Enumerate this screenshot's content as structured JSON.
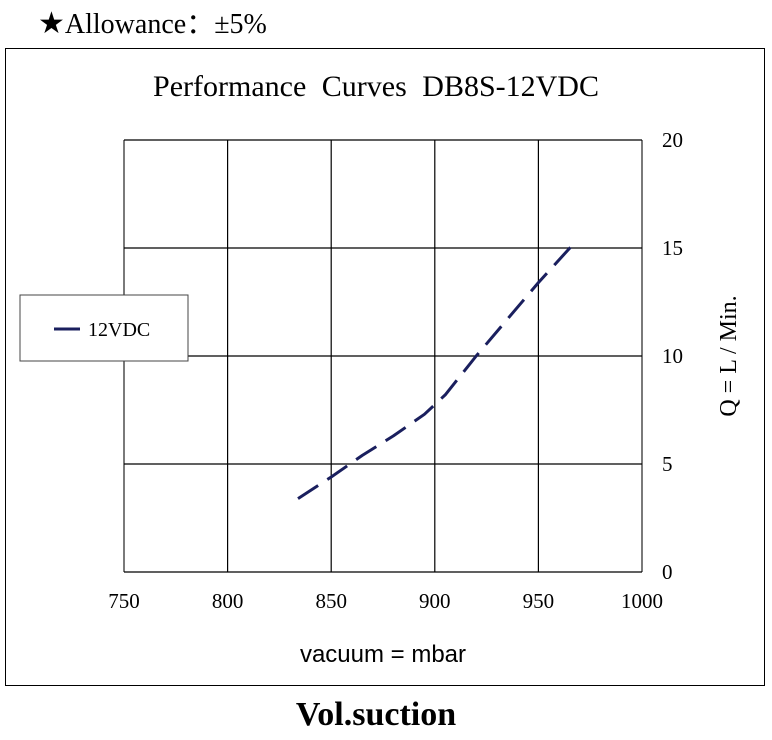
{
  "header": {
    "allowance_icon": "star-icon",
    "allowance_star": "★",
    "allowance_text": "Allowance：±5%"
  },
  "caption": "Vol.suction",
  "chart_data": {
    "type": "line",
    "title": "Performance  Curves  DB8S-12VDC",
    "xlabel": "vacuum = mbar",
    "ylabel": "Q = L / Min.",
    "xlim": [
      750,
      1000
    ],
    "ylim": [
      0,
      20
    ],
    "xticks": [
      750,
      800,
      850,
      900,
      950,
      1000
    ],
    "yticks": [
      0,
      5,
      10,
      15,
      20
    ],
    "grid": true,
    "legend_position": "left",
    "series": [
      {
        "name": "12VDC",
        "color": "#1a1f5e",
        "style": "dashed",
        "x": [
          834,
          850,
          865,
          880,
          895,
          905,
          920,
          935,
          950,
          968
        ],
        "y": [
          3.4,
          4.4,
          5.4,
          6.3,
          7.3,
          8.2,
          10.0,
          11.7,
          13.4,
          15.3
        ]
      }
    ]
  }
}
